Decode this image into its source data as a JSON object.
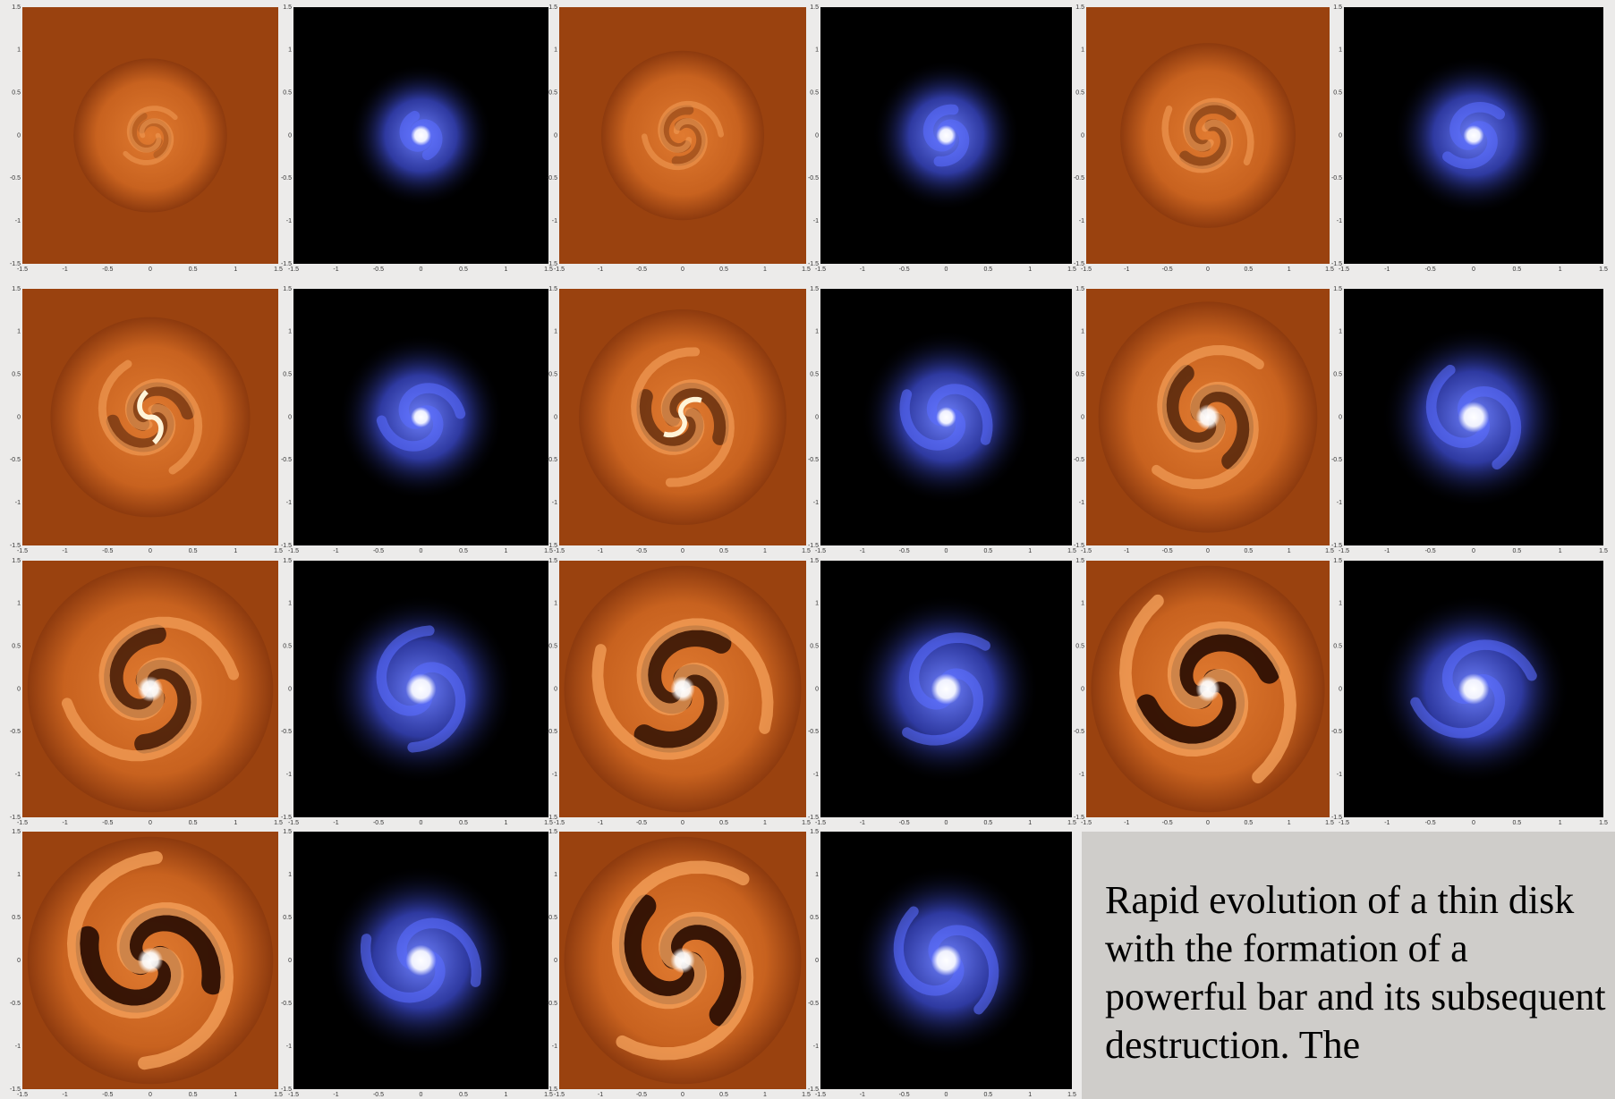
{
  "axis_ticks": [
    "-1.5",
    "-1",
    "-0.5",
    "0",
    "0.5",
    "1",
    "1.5"
  ],
  "caption": "Rapid evolution of a thin disk with the formation of a powerful bar and its subsequent destruction. The"
}
